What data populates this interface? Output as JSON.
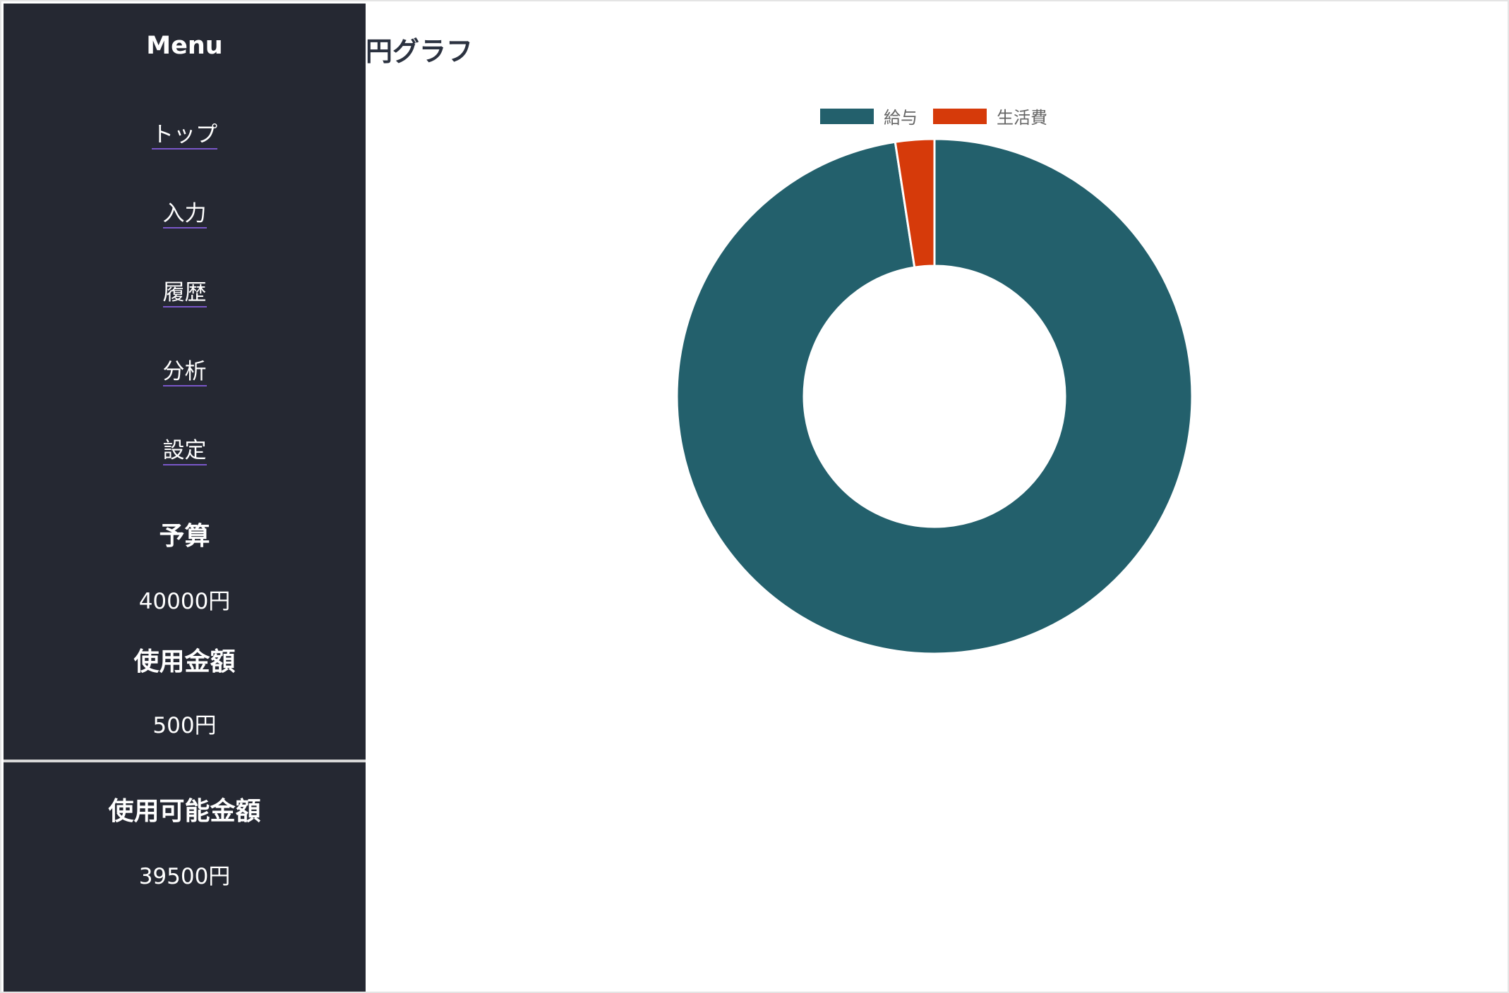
{
  "sidebar": {
    "menu_title": "Menu",
    "nav": [
      {
        "label": "トップ"
      },
      {
        "label": "入力"
      },
      {
        "label": "履歴"
      },
      {
        "label": "分析"
      },
      {
        "label": "設定"
      }
    ],
    "budget_heading": "予算",
    "budget_value": "40000円",
    "used_heading": "使用金額",
    "used_value": "500円",
    "available_heading": "使用可能金額",
    "available_value": "39500円"
  },
  "main": {
    "title": "円グラフ"
  },
  "chart_data": {
    "type": "pie",
    "title": "",
    "categories": [
      "給与",
      "生活費"
    ],
    "values": [
      40000,
      1000
    ],
    "colors": [
      "#23606c",
      "#d63a0a"
    ],
    "legend": "top",
    "donut": true
  }
}
